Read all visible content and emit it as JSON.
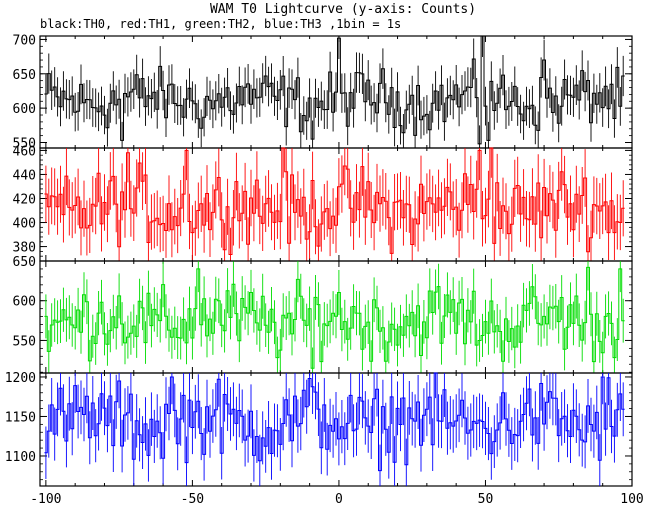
{
  "chart_data": {
    "type": "line",
    "title": "WAM T0 Lightcurve (y-axis: Counts)",
    "subtitle": "black:TH0, red:TH1, green:TH2, blue:TH3 ,1bin = 1s",
    "x_ticks": [
      -100,
      -50,
      0,
      50,
      100
    ],
    "x_range": [
      -102,
      100
    ],
    "panels": [
      {
        "color": "#000000",
        "ylim": [
          542,
          705
        ],
        "yticks": [
          550,
          600,
          650,
          700
        ],
        "mean": 612,
        "amp": 20,
        "spikes": [
          [
            -74,
            553
          ],
          [
            -9,
            555
          ],
          [
            0,
            702
          ],
          [
            48,
            548
          ],
          [
            49,
            705
          ],
          [
            51,
            553
          ],
          [
            70,
            670
          ]
        ]
      },
      {
        "color": "#ff0000",
        "ylim": [
          368,
          462
        ],
        "yticks": [
          380,
          400,
          420,
          440,
          460
        ],
        "mean": 412,
        "amp": 15,
        "spikes": [
          [
            -72,
            458
          ],
          [
            -52,
            460
          ],
          [
            -19,
            462
          ],
          [
            48,
            460
          ],
          [
            52,
            462
          ]
        ]
      },
      {
        "color": "#00dd00",
        "ylim": [
          509,
          650
        ],
        "yticks": [
          550,
          600,
          650
        ],
        "mean": 575,
        "amp": 22,
        "spikes": [
          [
            -48,
            640
          ],
          [
            -9,
            515
          ],
          [
            85,
            642
          ],
          [
            96,
            640
          ]
        ]
      },
      {
        "color": "#0000ff",
        "ylim": [
          1062,
          1205
        ],
        "yticks": [
          1100,
          1150,
          1200
        ],
        "mean": 1143,
        "amp": 23,
        "spikes": [
          [
            -57,
            1200
          ],
          [
            -10,
            1198
          ],
          [
            90,
            1200
          ],
          [
            92,
            1199
          ]
        ]
      }
    ]
  }
}
